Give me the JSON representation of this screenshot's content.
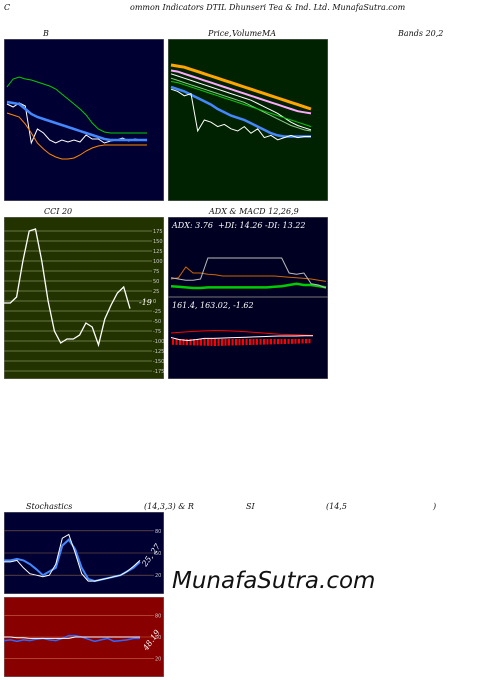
{
  "header": {
    "left": "C",
    "title": "ommon Indicators DTIL Dhunseri Tea & Ind. Ltd. MunafaSutra.com"
  },
  "panel_titles": {
    "bb_left": "B",
    "price_a": "Price,",
    "price_b": "Volume",
    "price_c": "MA",
    "bands": "Bands 20,2",
    "cci": "CCI 20",
    "adx_macd": "ADX  & MACD 12,26,9",
    "stoch": "Stochastics",
    "stoch_params": "(14,3,3) & R",
    "rsi": "SI",
    "rsi_params": "(14,5",
    "rsi_close": ")"
  },
  "readouts": {
    "adx": "ADX: 3.76",
    "plus_di": "+DI: 14.26",
    "minus_di": "-DI: 13.22",
    "macd": "161.4,  163.02,  -1.62",
    "cci_value": "-19",
    "stoch_value": "25, 27",
    "rsi_value": "48.19"
  },
  "watermark": "MunafaSutra.com",
  "chart_data": [
    {
      "type": "line",
      "title": "Bollinger Bands 20,2",
      "series": [
        {
          "color": "#00cc00",
          "values": [
            0.72,
            0.8,
            0.82,
            0.8,
            0.79,
            0.77,
            0.75,
            0.73,
            0.7,
            0.65,
            0.6,
            0.55,
            0.5,
            0.44,
            0.36,
            0.3,
            0.27,
            0.26,
            0.26,
            0.26,
            0.26,
            0.26,
            0.26,
            0.26
          ]
        },
        {
          "color": "#ffffff",
          "values": [
            0.55,
            0.52,
            0.56,
            0.53,
            0.16,
            0.3,
            0.26,
            0.19,
            0.16,
            0.19,
            0.17,
            0.19,
            0.17,
            0.24,
            0.2,
            0.2,
            0.16,
            0.18,
            0.19,
            0.21,
            0.18,
            0.2,
            0.19,
            0.19
          ]
        },
        {
          "color": "#4488ff",
          "values": [
            0.57,
            0.56,
            0.55,
            0.5,
            0.45,
            0.42,
            0.4,
            0.38,
            0.36,
            0.34,
            0.32,
            0.3,
            0.28,
            0.26,
            0.24,
            0.22,
            0.2,
            0.19,
            0.19,
            0.19,
            0.19,
            0.19,
            0.19,
            0.19
          ]
        },
        {
          "color": "#ff8800",
          "values": [
            0.46,
            0.44,
            0.42,
            0.35,
            0.26,
            0.16,
            0.1,
            0.05,
            0.02,
            0.0,
            0.0,
            0.01,
            0.04,
            0.08,
            0.11,
            0.13,
            0.14,
            0.14,
            0.14,
            0.14,
            0.14,
            0.14,
            0.14,
            0.14
          ]
        }
      ]
    },
    {
      "type": "line",
      "title": "Price, Volume, MA",
      "series": [
        {
          "color": "#ffa500",
          "values": [
            0.9,
            0.89,
            0.88,
            0.86,
            0.84,
            0.82,
            0.8,
            0.78,
            0.76,
            0.74,
            0.72,
            0.7,
            0.68,
            0.66,
            0.64,
            0.62,
            0.6,
            0.58,
            0.56,
            0.54,
            0.52,
            0.5
          ]
        },
        {
          "color": "#ffaaff",
          "values": [
            0.85,
            0.84,
            0.82,
            0.8,
            0.78,
            0.76,
            0.74,
            0.72,
            0.7,
            0.68,
            0.66,
            0.64,
            0.62,
            0.6,
            0.58,
            0.56,
            0.54,
            0.52,
            0.5,
            0.48,
            0.47,
            0.46
          ]
        },
        {
          "color": "#ffffff",
          "values": [
            0.82,
            0.8,
            0.78,
            0.76,
            0.74,
            0.72,
            0.7,
            0.68,
            0.66,
            0.64,
            0.62,
            0.6,
            0.58,
            0.55,
            0.52,
            0.49,
            0.46,
            0.42,
            0.38,
            0.35,
            0.33,
            0.31
          ]
        },
        {
          "color": "#88cc88",
          "values": [
            0.78,
            0.76,
            0.74,
            0.72,
            0.7,
            0.68,
            0.66,
            0.64,
            0.62,
            0.6,
            0.58,
            0.56,
            0.53,
            0.5,
            0.47,
            0.44,
            0.41,
            0.38,
            0.35,
            0.33,
            0.31,
            0.3
          ]
        },
        {
          "color": "#4488ff",
          "values": [
            0.7,
            0.68,
            0.66,
            0.63,
            0.6,
            0.57,
            0.54,
            0.5,
            0.47,
            0.44,
            0.42,
            0.4,
            0.37,
            0.34,
            0.31,
            0.28,
            0.26,
            0.25,
            0.25,
            0.25,
            0.25,
            0.25
          ]
        },
        {
          "color": "#ffffff",
          "values": [
            0.68,
            0.66,
            0.62,
            0.64,
            0.3,
            0.4,
            0.38,
            0.34,
            0.36,
            0.32,
            0.3,
            0.34,
            0.28,
            0.32,
            0.24,
            0.26,
            0.22,
            0.24,
            0.26,
            0.24,
            0.25,
            0.25
          ]
        },
        {
          "color": "#00cc00",
          "values": [
            0.75,
            0.74,
            0.72,
            0.7,
            0.68,
            0.66,
            0.64,
            0.62,
            0.6,
            0.58,
            0.56,
            0.54,
            0.52,
            0.5,
            0.48,
            0.46,
            0.44,
            0.42,
            0.4,
            0.38,
            0.36,
            0.34
          ]
        }
      ]
    },
    {
      "type": "line",
      "title": "CCI 20",
      "ylim": [
        -175,
        175
      ],
      "yticks": [
        175,
        150,
        125,
        100,
        75,
        50,
        25,
        0,
        -25,
        -50,
        -75,
        -100,
        -125,
        -150,
        -175
      ],
      "series": [
        {
          "color": "#ffffff",
          "values": [
            -5,
            -5,
            10,
            100,
            175,
            180,
            100,
            0,
            -75,
            -105,
            -95,
            -95,
            -85,
            -55,
            -65,
            -110,
            -45,
            -10,
            20,
            35,
            -19
          ]
        }
      ]
    },
    {
      "type": "line",
      "title": "ADX & MACD 12,26,9",
      "ylim": [
        0,
        1
      ],
      "series": [
        {
          "color": "#00cc00",
          "values": [
            0.08,
            0.07,
            0.06,
            0.05,
            0.05,
            0.06,
            0.06,
            0.06,
            0.06,
            0.06,
            0.06,
            0.06,
            0.06,
            0.06,
            0.07,
            0.08,
            0.1,
            0.12,
            0.1,
            0.1,
            0.08,
            0.06
          ]
        },
        {
          "color": "#cc6600",
          "values": [
            0.2,
            0.22,
            0.4,
            0.3,
            0.3,
            0.28,
            0.27,
            0.25,
            0.25,
            0.25,
            0.25,
            0.25,
            0.25,
            0.25,
            0.25,
            0.24,
            0.23,
            0.22,
            0.21,
            0.2,
            0.18,
            0.16
          ]
        },
        {
          "color": "#bbbbbb",
          "values": [
            0.22,
            0.2,
            0.18,
            0.18,
            0.2,
            0.55,
            0.55,
            0.55,
            0.55,
            0.55,
            0.55,
            0.55,
            0.55,
            0.55,
            0.55,
            0.55,
            0.3,
            0.28,
            0.3,
            0.12,
            0.1,
            0.05
          ]
        }
      ]
    },
    {
      "type": "line",
      "title": "MACD",
      "series": [
        {
          "color": "#ff0000",
          "values": [
            0.8,
            0.82,
            0.84,
            0.86,
            0.87,
            0.88,
            0.88,
            0.87,
            0.86,
            0.84,
            0.82,
            0.8,
            0.78,
            0.76,
            0.75,
            0.74,
            0.73,
            0.72
          ]
        },
        {
          "color": "#ffffff",
          "values": [
            0.65,
            0.58,
            0.55,
            0.58,
            0.62,
            0.62,
            0.63,
            0.64,
            0.65,
            0.66,
            0.67,
            0.68,
            0.69,
            0.7,
            0.7,
            0.7,
            0.71,
            0.71
          ]
        }
      ]
    },
    {
      "type": "line",
      "title": "Stochastics (14,3,3)",
      "ylim": [
        0,
        100
      ],
      "yticks": [
        80,
        50,
        20
      ],
      "series": [
        {
          "color": "#4488ff",
          "values": [
            40,
            40,
            42,
            40,
            35,
            28,
            20,
            25,
            30,
            60,
            68,
            55,
            30,
            15,
            12,
            14,
            16,
            18,
            20,
            25,
            30,
            38
          ]
        },
        {
          "color": "#ffffff",
          "values": [
            38,
            38,
            40,
            30,
            22,
            20,
            18,
            20,
            35,
            70,
            75,
            50,
            22,
            12,
            12,
            14,
            16,
            18,
            20,
            25,
            32,
            40
          ]
        }
      ]
    },
    {
      "type": "line",
      "title": "RSI (14,5)",
      "ylim": [
        0,
        100
      ],
      "yticks": [
        80,
        50,
        20
      ],
      "series": [
        {
          "color": "#3366ff",
          "values": [
            45,
            46,
            44,
            46,
            45,
            47,
            48,
            46,
            45,
            48,
            52,
            52,
            50,
            47,
            44,
            46,
            48,
            44,
            45,
            46,
            48,
            48
          ]
        },
        {
          "color": "#ffffff",
          "values": [
            50,
            50,
            49,
            49,
            48,
            48,
            48,
            48,
            48,
            48,
            48,
            50,
            50,
            50,
            50,
            50,
            50,
            50,
            50,
            50,
            50,
            50
          ]
        }
      ]
    }
  ]
}
